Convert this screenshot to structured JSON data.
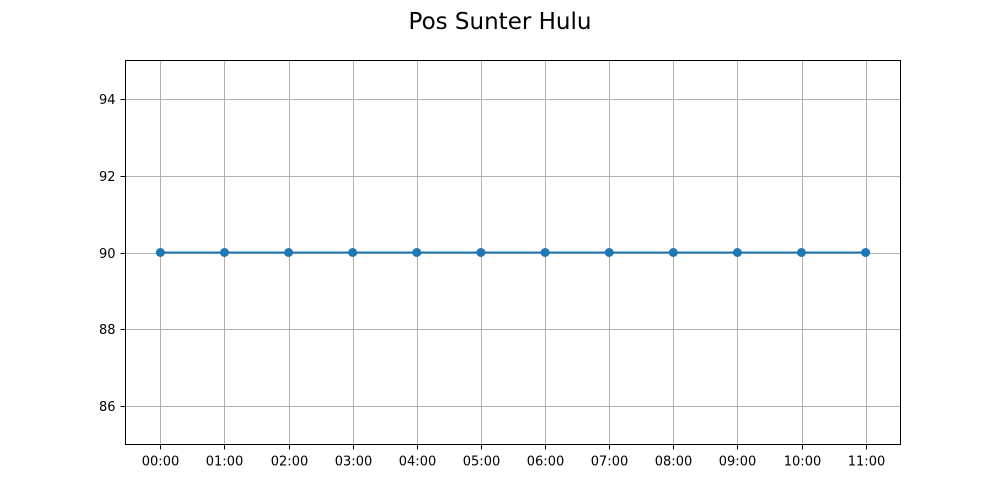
{
  "chart_data": {
    "type": "line",
    "title": "Pos Sunter Hulu",
    "xlabel": "",
    "ylabel": "",
    "categories": [
      "00:00",
      "01:00",
      "02:00",
      "03:00",
      "04:00",
      "05:00",
      "06:00",
      "07:00",
      "08:00",
      "09:00",
      "10:00",
      "11:00"
    ],
    "series": [
      {
        "values": [
          90,
          90,
          90,
          90,
          90,
          90,
          90,
          90,
          90,
          90,
          90,
          90
        ],
        "color": "#1f77b4",
        "marker": "circle"
      }
    ],
    "ylim": [
      85,
      95
    ],
    "yticks": [
      86,
      88,
      90,
      92,
      94
    ],
    "grid": true,
    "legend": "none"
  }
}
